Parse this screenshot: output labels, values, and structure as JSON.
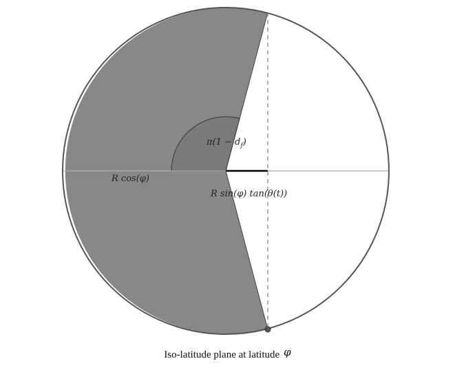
{
  "diagram": {
    "labels": {
      "angle": "π(1 − d",
      "angle_sub": "f",
      "angle_close": ")",
      "radius_cos": "R cos(φ)",
      "offset": "R sin(φ) tan(θ(t))"
    },
    "colors": {
      "shaded_region": "#888888",
      "angle_wedge": "#7a7a7a",
      "circle_stroke": "#555555",
      "axis_line": "#aaaaaa",
      "dashed_line": "#9a9a9a",
      "offset_segment": "#000000",
      "point": "#555555"
    }
  },
  "caption": {
    "text": "Iso-latitude plane at latitude",
    "symbol": "φ"
  }
}
